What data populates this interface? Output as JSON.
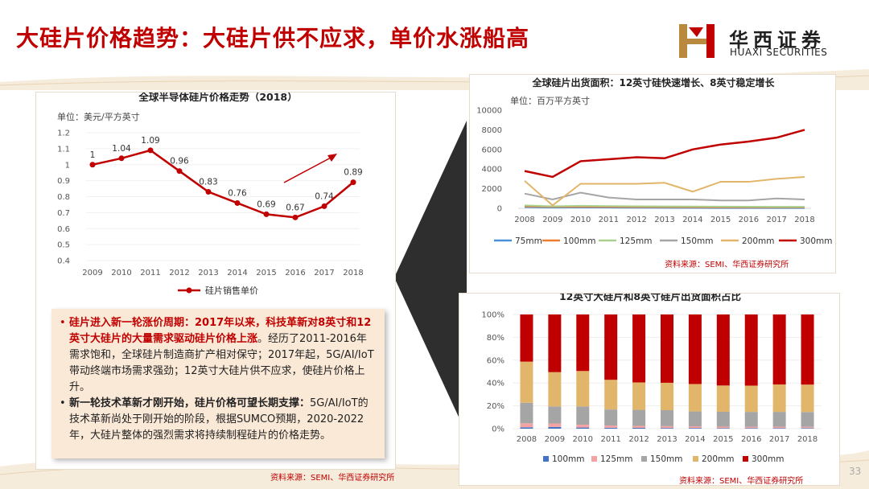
{
  "header": {
    "title": "大硅片价格趋势：大硅片供不应求，单价水涨船高",
    "logo_cn": "华西证券",
    "logo_en": "HUAXI SECURITIES"
  },
  "page_number": "33",
  "colors": {
    "accent_red": "#c00000",
    "gold": "#e2b66a",
    "textbox_bg": "#fbe9d7"
  },
  "chart_data": [
    {
      "type": "line",
      "title": "全球半导体硅片价格走势（2018）",
      "unit_label": "单位：美元/平方英寸",
      "categories": [
        "2009",
        "2010",
        "2011",
        "2012",
        "2013",
        "2014",
        "2015",
        "2016",
        "2017",
        "2018"
      ],
      "series": [
        {
          "name": "硅片销售单价",
          "color": "#c00000",
          "values": [
            1,
            1.04,
            1.09,
            0.96,
            0.83,
            0.76,
            0.69,
            0.67,
            0.74,
            0.89
          ]
        }
      ],
      "data_labels": [
        "1",
        "1.04",
        "1.09",
        "0.96",
        "0.83",
        "0.76",
        "0.69",
        "0.67",
        "0.74",
        "0.89"
      ],
      "y_ticks": [
        "0.4",
        "0.5",
        "0.6",
        "0.7",
        "0.8",
        "0.9",
        "1",
        "1.1",
        "1.2"
      ],
      "ylim": [
        0.4,
        1.2
      ],
      "source": "资料来源：SEMI、华西证券研究所",
      "annotations": [
        "upward-trend-arrow"
      ]
    },
    {
      "type": "line",
      "title": "全球硅片出货面积：12英寸硅快速增长、8英寸稳定增长",
      "unit_label": "单位：百万平方英寸",
      "categories": [
        "2008",
        "2009",
        "2010",
        "2011",
        "2012",
        "2013",
        "2014",
        "2015",
        "2016",
        "2017",
        "2018"
      ],
      "series": [
        {
          "name": "75mm",
          "color": "#4a90d9",
          "values": [
            120,
            80,
            90,
            80,
            60,
            50,
            40,
            30,
            30,
            30,
            30
          ]
        },
        {
          "name": "100mm",
          "color": "#ed7d31",
          "values": [
            200,
            150,
            160,
            150,
            130,
            120,
            110,
            100,
            100,
            100,
            100
          ]
        },
        {
          "name": "125mm",
          "color": "#a9d18e",
          "values": [
            300,
            200,
            260,
            230,
            200,
            190,
            180,
            170,
            160,
            150,
            150
          ]
        },
        {
          "name": "150mm",
          "color": "#a5a5a5",
          "values": [
            1500,
            900,
            1600,
            1100,
            900,
            900,
            900,
            800,
            800,
            1000,
            900
          ]
        },
        {
          "name": "200mm",
          "color": "#e2b66a",
          "values": [
            2800,
            300,
            2500,
            2500,
            2500,
            2600,
            1700,
            2700,
            2700,
            3000,
            3200
          ]
        },
        {
          "name": "300mm",
          "color": "#c00000",
          "values": [
            3800,
            3200,
            4800,
            5000,
            5200,
            5100,
            6000,
            6500,
            6800,
            7200,
            8000
          ]
        }
      ],
      "y_ticks": [
        "0",
        "2000",
        "4000",
        "6000",
        "8000",
        "10000"
      ],
      "ylim": [
        0,
        10000
      ],
      "source": "资料来源：SEMI、华西证券研究所"
    },
    {
      "type": "bar",
      "title": "12英寸大硅片和8英寸硅片出货面积占比",
      "stacked": true,
      "categories": [
        "2008",
        "2009",
        "2010",
        "2011",
        "2012",
        "2013",
        "2014",
        "2015",
        "2016",
        "2017",
        "2018"
      ],
      "series": [
        {
          "name": "100mm",
          "color": "#4472c4",
          "values": [
            1.2,
            1.5,
            1.0,
            0.8,
            0.7,
            0.6,
            0.6,
            0.5,
            0.5,
            0.5,
            0.5
          ]
        },
        {
          "name": "125mm",
          "color": "#f4a3a3",
          "values": [
            3.5,
            3.0,
            2.5,
            2.0,
            1.8,
            1.6,
            1.5,
            1.3,
            1.2,
            1.2,
            1.1
          ]
        },
        {
          "name": "150mm",
          "color": "#a5a5a5",
          "values": [
            18,
            15,
            16,
            14,
            14,
            14,
            13,
            13,
            13,
            13,
            13
          ]
        },
        {
          "name": "200mm",
          "color": "#e2b66a",
          "values": [
            36,
            30,
            31,
            26,
            24,
            24,
            24,
            23,
            23,
            24,
            24
          ]
        },
        {
          "name": "300mm",
          "color": "#c00000",
          "values": [
            41.3,
            50.5,
            49.5,
            57.2,
            59.5,
            59.8,
            60.9,
            62.2,
            62.3,
            61.3,
            61.4
          ]
        }
      ],
      "y_ticks": [
        "0%",
        "20%",
        "40%",
        "60%",
        "80%",
        "100%"
      ],
      "ylim": [
        0,
        100
      ],
      "source": "资料来源：SEMI、华西证券研究所"
    }
  ],
  "textbox": {
    "bullet1_hl": "硅片进入新一轮涨价周期：2017年以来，科技革新对8英寸和12英寸大硅片的大量需求驱动硅片价格上涨",
    "bullet1_text": "。经历了2011-2016年需求饱和，全球硅片制造商扩产相对保守；2017年起，5G/AI/IoT带动终端市场需求强劲；12英寸大硅片供不应求，使硅片价格上升。",
    "bullet2_hl": "新一轮技术革新才刚开始，硅片价格可望长期支撑：",
    "bullet2_text": "5G/AI/IoT的技术革新尚处于刚开始的阶段，根据SUMCO预期，2020-2022年，大硅片整体的强烈需求将持续制程硅片的价格走势。"
  }
}
